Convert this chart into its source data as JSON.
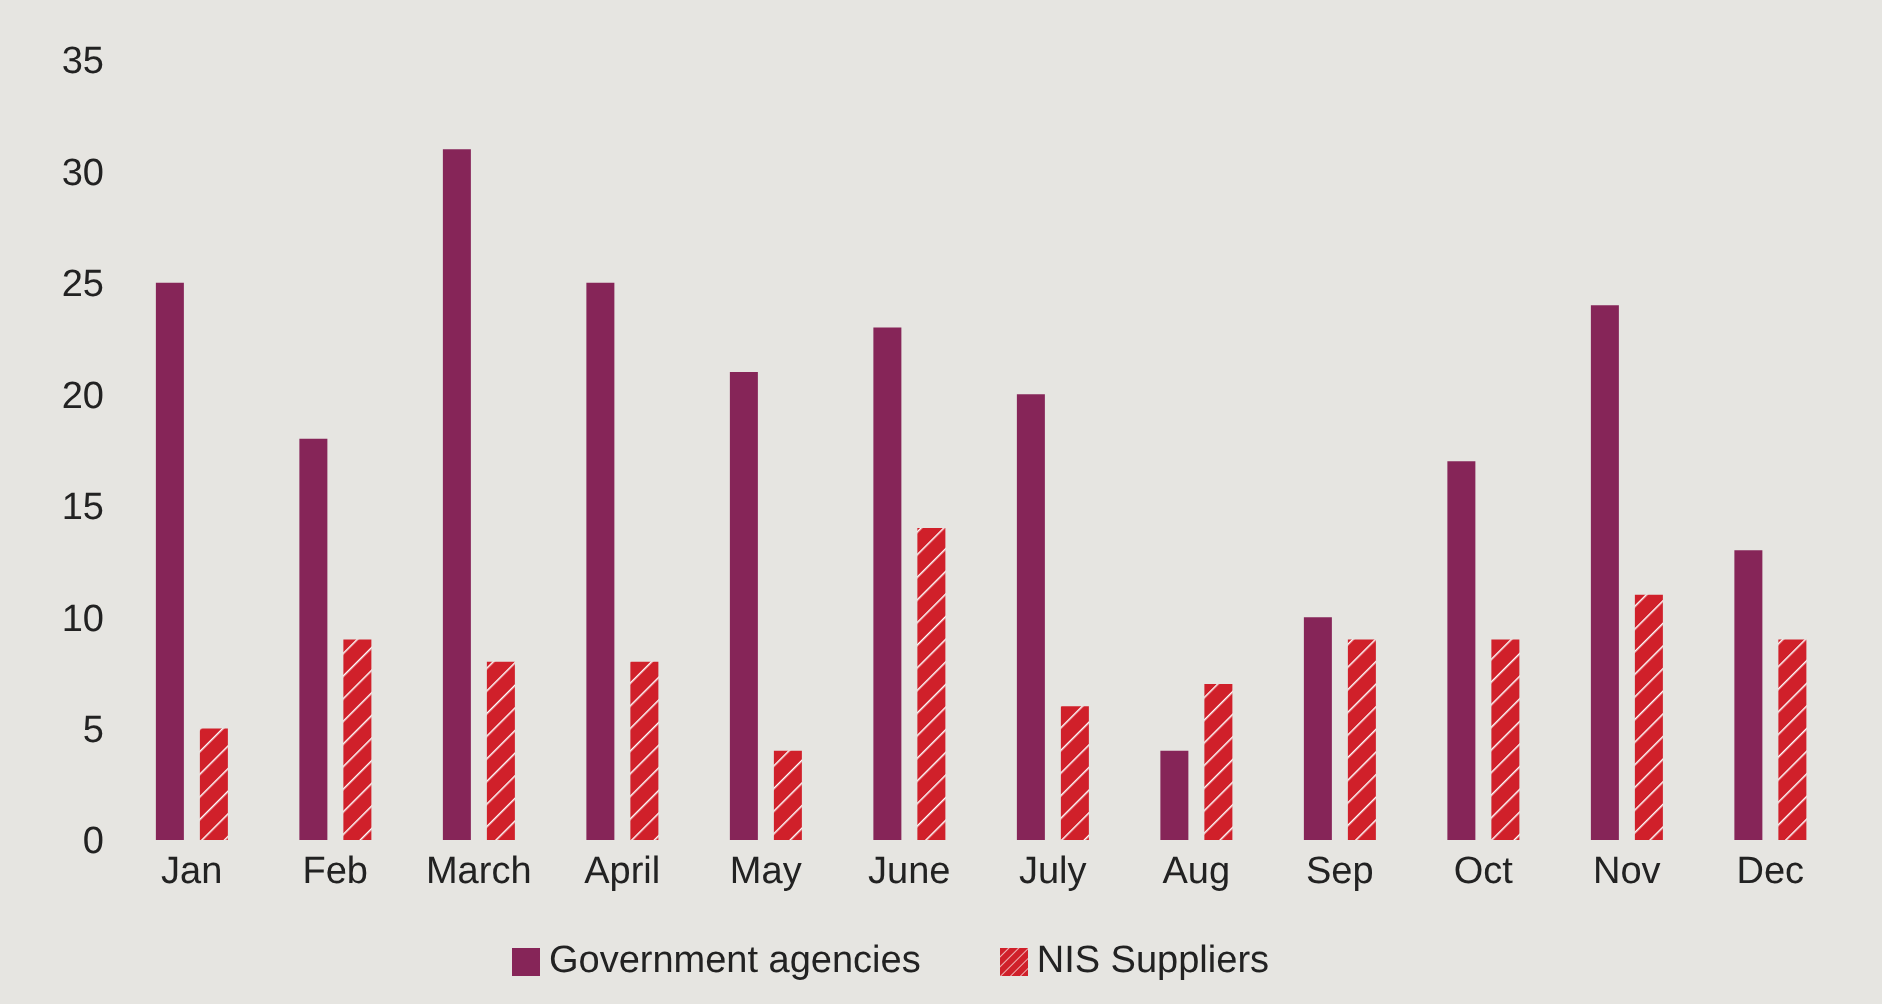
{
  "chart_data": {
    "type": "bar",
    "categories": [
      "Jan",
      "Feb",
      "March",
      "April",
      "May",
      "June",
      "July",
      "Aug",
      "Sep",
      "Oct",
      "Nov",
      "Dec"
    ],
    "series": [
      {
        "name": "Government agencies",
        "color": "#862558",
        "values": [
          25,
          18,
          31,
          25,
          21,
          23,
          20,
          4,
          10,
          17,
          24,
          13
        ]
      },
      {
        "name": "NIS Suppliers",
        "color": "#d0202a",
        "values": [
          5,
          9,
          8,
          8,
          4,
          14,
          6,
          7,
          9,
          9,
          11,
          9
        ]
      }
    ],
    "ylim": [
      0,
      35
    ],
    "yticks": [
      0,
      5,
      10,
      15,
      20,
      25,
      30,
      35
    ],
    "grid": false,
    "legend": "bottom"
  }
}
